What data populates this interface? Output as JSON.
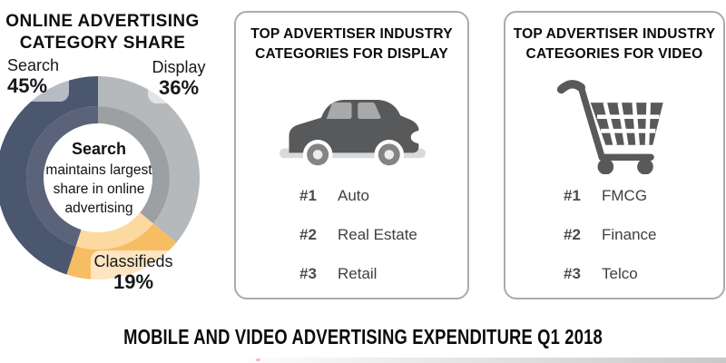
{
  "left_panel": {
    "title_line1": "ONLINE ADVERTISING",
    "title_line2": "CATEGORY SHARE",
    "center": {
      "highlight": "Search",
      "line1": "maintains largest",
      "line2": "share in online",
      "line3": "advertising"
    },
    "labels": {
      "search": {
        "name": "Search",
        "pct": "45%"
      },
      "display": {
        "name": "Display",
        "pct": "36%"
      },
      "classifieds": {
        "name": "Classifieds",
        "pct": "19%"
      }
    }
  },
  "chart_data": {
    "type": "pie",
    "subtype": "donut",
    "title": "ONLINE ADVERTISING CATEGORY SHARE",
    "categories": [
      "Search",
      "Display",
      "Classifieds"
    ],
    "values": [
      45,
      36,
      19
    ],
    "unit": "%",
    "annotation": "Search maintains largest share in online advertising",
    "legend_position": "around-chart",
    "render_order_clockwise_from_top": [
      {
        "label": "Display",
        "value": 36,
        "outer_color": "#b6b9bc",
        "inner_color": "#9ca0a3"
      },
      {
        "label": "Classifieds",
        "value": 19,
        "outer_color": "#f7bd63",
        "inner_color": "#fcd9a0"
      },
      {
        "label": "Search",
        "value": 45,
        "outer_color": "#4b566f",
        "inner_color": "#5a6379"
      }
    ]
  },
  "display_card": {
    "title_line1": "TOP ADVERTISER INDUSTRY",
    "title_line2": "CATEGORIES FOR DISPLAY",
    "icon": "car-icon",
    "items": [
      {
        "rank": "#1",
        "label": "Auto"
      },
      {
        "rank": "#2",
        "label": "Real Estate"
      },
      {
        "rank": "#3",
        "label": "Retail"
      }
    ]
  },
  "video_card": {
    "title_line1": "TOP ADVERTISER INDUSTRY",
    "title_line2": "CATEGORIES FOR VIDEO",
    "icon": "shopping-cart-icon",
    "items": [
      {
        "rank": "#1",
        "label": "FMCG"
      },
      {
        "rank": "#2",
        "label": "Finance"
      },
      {
        "rank": "#3",
        "label": "Telco"
      }
    ]
  },
  "footer": {
    "heading": "MOBILE AND VIDEO ADVERTISING EXPENDITURE Q1 2018"
  },
  "colors": {
    "search_outer": "#4b566f",
    "search_inner": "#5a6379",
    "display_outer": "#b6b9bc",
    "display_inner": "#9ca0a3",
    "classifieds_outer": "#f7bd63",
    "classifieds_inner": "#fcd9a0",
    "icon_dark": "#58595b",
    "icon_mid": "#a7a9ab",
    "icon_light": "#d9dadb",
    "card_border": "#a9abad"
  }
}
